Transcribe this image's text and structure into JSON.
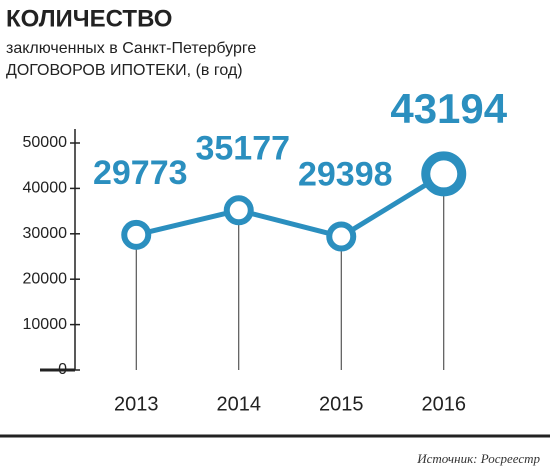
{
  "chart_data": {
    "type": "line",
    "title": "КОЛИЧЕСТВО",
    "subtitle": "заключенных в Санкт-Петербурге",
    "subtitle2": "ДОГОВОРОВ ИПОТЕКИ, (в год)",
    "source": "Источник: Росреестр",
    "categories": [
      "2013",
      "2014",
      "2015",
      "2016"
    ],
    "values": [
      29773,
      35177,
      29398,
      43194
    ],
    "color": "#2b8fbf",
    "ylim": [
      0,
      50000
    ],
    "yticks": [
      0,
      10000,
      20000,
      30000,
      40000,
      50000
    ]
  }
}
